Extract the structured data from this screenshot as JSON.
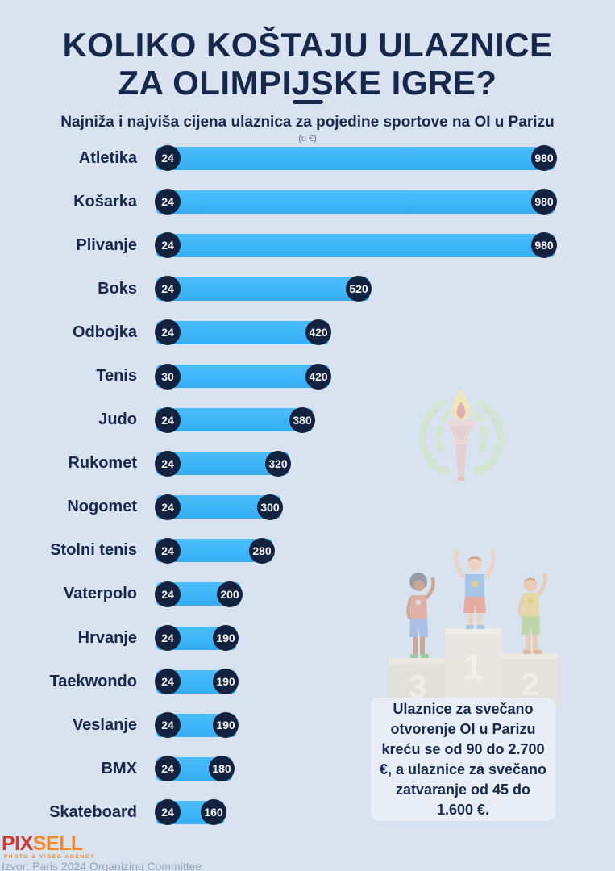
{
  "page": {
    "title_line1": "KOLIKO KOŠTAJU ULAZNICE",
    "title_line2": "ZA OLIMPIJSKE IGRE?",
    "subtitle": "Najniža i najviša cijena ulaznica za pojedine sportove na OI u Parizu",
    "unit_note": "(u €)"
  },
  "chart_data": {
    "type": "bar",
    "orientation": "horizontal",
    "title": "Koliko koštaju ulaznice za Olimpijske igre?",
    "subtitle": "Najniža i najviša cijena ulaznica za pojedine sportove na OI u Parizu",
    "unit": "€",
    "xlim": [
      0,
      1000
    ],
    "grid": false,
    "legend": false,
    "categories": [
      "Atletika",
      "Košarka",
      "Plivanje",
      "Boks",
      "Odbojka",
      "Tenis",
      "Judo",
      "Rukomet",
      "Nogomet",
      "Stolni tenis",
      "Vaterpolo",
      "Hrvanje",
      "Taekwondo",
      "Veslanje",
      "BMX",
      "Skateboard"
    ],
    "series": [
      {
        "name": "min_price",
        "values": [
          24,
          24,
          24,
          24,
          24,
          30,
          24,
          24,
          24,
          24,
          24,
          24,
          24,
          24,
          24,
          24
        ]
      },
      {
        "name": "max_price",
        "values": [
          980,
          980,
          980,
          520,
          420,
          420,
          380,
          320,
          300,
          280,
          200,
          190,
          190,
          190,
          180,
          160
        ]
      }
    ]
  },
  "note_box": {
    "text": "Ulaznice za svečano otvorenje OI u Parizu kreću se od 90 do 2.700 €, a ulaznice za svečano zatvaranje od 45 do 1.600 €."
  },
  "footer": {
    "logo_part1": "PIX",
    "logo_part2": "SELL",
    "logo_tagline": "PHOTO & VIDEO AGENCY",
    "source": "Izvor: Paris 2024 Organizing Committee"
  },
  "colors": {
    "bg": "#D9E2EF",
    "bar": "#3FB6F8",
    "bubble": "#13233F",
    "navy": "#16294D",
    "box": "#E9EEF6"
  }
}
